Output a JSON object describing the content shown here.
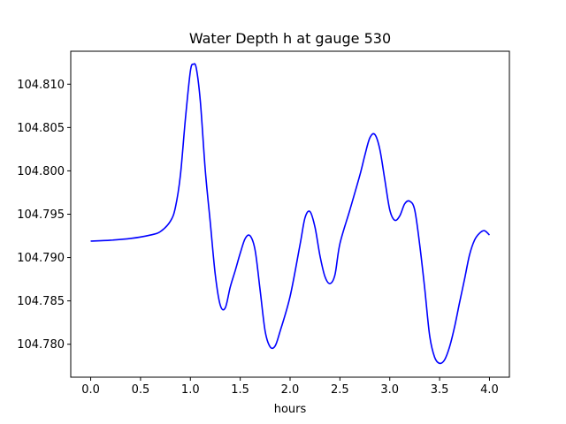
{
  "chart_data": {
    "type": "line",
    "title": "Water Depth h at gauge 530",
    "xlabel": "hours",
    "ylabel": "",
    "xlim": [
      -0.2,
      4.2
    ],
    "ylim": [
      104.7762,
      104.8138
    ],
    "xticks": [
      0.0,
      0.5,
      1.0,
      1.5,
      2.0,
      2.5,
      3.0,
      3.5,
      4.0
    ],
    "xtick_labels": [
      "0.0",
      "0.5",
      "1.0",
      "1.5",
      "2.0",
      "2.5",
      "3.0",
      "3.5",
      "4.0"
    ],
    "yticks": [
      104.78,
      104.785,
      104.79,
      104.795,
      104.8,
      104.805,
      104.81
    ],
    "ytick_labels": [
      "104.780",
      "104.785",
      "104.790",
      "104.795",
      "104.800",
      "104.805",
      "104.810"
    ],
    "grid": false,
    "color": "#0000ff",
    "series": [
      {
        "x": [
          0.0,
          0.2,
          0.4,
          0.6,
          0.7,
          0.8,
          0.85,
          0.9,
          0.95,
          1.0,
          1.03,
          1.06,
          1.1,
          1.15,
          1.2,
          1.25,
          1.3,
          1.35,
          1.4,
          1.45,
          1.5,
          1.55,
          1.6,
          1.65,
          1.7,
          1.75,
          1.8,
          1.85,
          1.9,
          2.0,
          2.1,
          2.15,
          2.2,
          2.25,
          2.3,
          2.35,
          2.4,
          2.45,
          2.5,
          2.6,
          2.7,
          2.75,
          2.8,
          2.85,
          2.9,
          2.95,
          3.0,
          3.05,
          3.1,
          3.15,
          3.2,
          3.25,
          3.3,
          3.35,
          3.4,
          3.45,
          3.5,
          3.55,
          3.6,
          3.65,
          3.7,
          3.75,
          3.8,
          3.85,
          3.9,
          3.95,
          4.0
        ],
        "y": [
          104.7919,
          104.792,
          104.7922,
          104.7926,
          104.793,
          104.7942,
          104.7958,
          104.7995,
          104.806,
          104.8115,
          104.8123,
          104.8118,
          104.808,
          104.8,
          104.794,
          104.788,
          104.7845,
          104.7842,
          104.7866,
          104.7885,
          104.7905,
          104.7922,
          104.7925,
          104.7908,
          104.7862,
          104.7815,
          104.7797,
          104.7798,
          104.7815,
          104.7855,
          104.7915,
          104.7946,
          104.7953,
          104.7935,
          104.7902,
          104.7878,
          104.787,
          104.788,
          104.7916,
          104.7955,
          104.7995,
          104.8018,
          104.8038,
          104.8042,
          104.8025,
          104.799,
          104.7955,
          104.7943,
          104.7948,
          104.7962,
          104.7965,
          104.7955,
          104.7915,
          104.7865,
          104.781,
          104.7785,
          104.7778,
          104.7782,
          104.7797,
          104.782,
          104.7848,
          104.7875,
          104.7903,
          104.792,
          104.7928,
          104.7931,
          104.7926
        ]
      }
    ]
  }
}
